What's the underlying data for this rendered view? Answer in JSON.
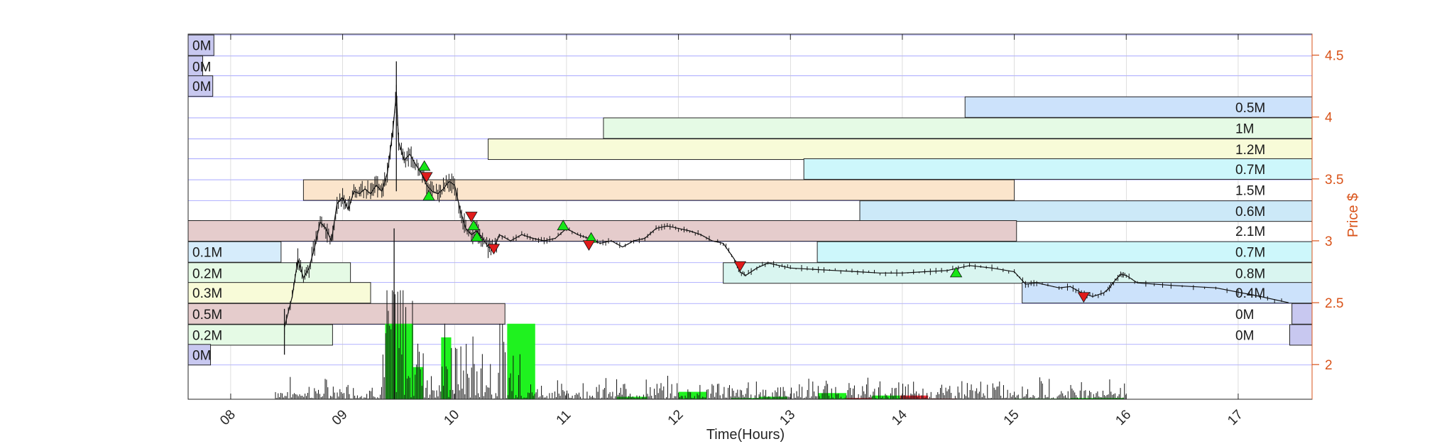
{
  "chart_data": {
    "type": "bar",
    "title": "",
    "xlabel": "Time(Hours)",
    "ylabel": "Price $",
    "x_ticks": [
      "08",
      "09",
      "10",
      "11",
      "12",
      "13",
      "14",
      "15",
      "16",
      "17"
    ],
    "x_range": [
      7.62,
      17.66
    ],
    "y_ticks": [
      "2",
      "2.5",
      "3",
      "3.5",
      "4",
      "4.5"
    ],
    "y_range": [
      1.72,
      4.67
    ],
    "grid": true,
    "colors": {
      "axis_right": "#d95319",
      "grid": "#7070ff",
      "volume_up": "#1ff21f",
      "volume_down": "#f2303a",
      "buy_marker": "#17e617",
      "sell_marker": "#e01b1b"
    },
    "volume_profile": {
      "price_bins": [
        4.58,
        4.41,
        4.25,
        4.08,
        3.91,
        3.74,
        3.58,
        3.41,
        3.24,
        3.08,
        2.91,
        2.74,
        2.58,
        2.41,
        2.24,
        2.08
      ],
      "bins": [
        {
          "side": "left",
          "label": "0M",
          "price": 4.58,
          "reach": 7.85,
          "color": "#c8c8f0"
        },
        {
          "side": "left",
          "label": "0M",
          "price": 4.41,
          "reach": 7.75,
          "color": "#c8c8f0"
        },
        {
          "side": "left",
          "label": "0M",
          "price": 4.25,
          "reach": 7.84,
          "color": "#c8c8f0"
        },
        {
          "side": "right",
          "label": "0.5M",
          "price": 4.08,
          "reach": 14.56,
          "color": "#cce2fb"
        },
        {
          "side": "right",
          "label": "1M",
          "price": 3.91,
          "reach": 11.33,
          "color": "#e5fae5"
        },
        {
          "side": "right",
          "label": "1.2M",
          "price": 3.74,
          "reach": 10.3,
          "color": "#f8fbd8"
        },
        {
          "side": "right",
          "label": "0.7M",
          "price": 3.58,
          "reach": 13.12,
          "color": "#cdf7fb"
        },
        {
          "side": "left",
          "label": "1.5M",
          "price": 3.41,
          "reach": 8.65,
          "color": "#fbe5cc",
          "wide_to": 15.0
        },
        {
          "side": "right",
          "label": "0.6M",
          "price": 3.24,
          "reach": 13.62,
          "color": "#cce9f8"
        },
        {
          "side": "left",
          "label": "0M",
          "price": 3.08,
          "reach": 7.73,
          "color": "#c8c8f0"
        },
        {
          "side": "left_wide",
          "label": "2.1M",
          "price": 3.08,
          "reach": 15.02,
          "color": "#e5cccc"
        },
        {
          "side": "left",
          "label": "0.1M",
          "price": 2.91,
          "reach": 8.45,
          "color": "#d6ecfb"
        },
        {
          "side": "right",
          "label": "0.7M",
          "price": 2.91,
          "reach": 13.24,
          "color": "#cdf7fb"
        },
        {
          "side": "left",
          "label": "0.2M",
          "price": 2.74,
          "reach": 9.07,
          "color": "#e5fae5"
        },
        {
          "side": "right",
          "label": "0.8M",
          "price": 2.74,
          "reach": 12.4,
          "color": "#d9f5f0"
        },
        {
          "side": "left",
          "label": "0.3M",
          "price": 2.58,
          "reach": 9.25,
          "color": "#f8fbd8"
        },
        {
          "side": "right",
          "label": "0.4M",
          "price": 2.58,
          "reach": 15.07,
          "color": "#cce2fb"
        },
        {
          "side": "left",
          "label": "0.5M",
          "price": 2.41,
          "reach": 10.45,
          "color": "#e5cccc"
        },
        {
          "side": "right",
          "label": "0M",
          "price": 2.41,
          "reach": 17.48,
          "color": "#c8c8f0"
        },
        {
          "side": "left",
          "label": "0.2M",
          "price": 2.24,
          "reach": 8.91,
          "color": "#e5fae5"
        },
        {
          "side": "right",
          "label": "0M",
          "price": 2.24,
          "reach": 17.46,
          "color": "#c8c8f0"
        },
        {
          "side": "left",
          "label": "0M",
          "price": 2.08,
          "reach": 7.82,
          "color": "#c8c8f0"
        }
      ]
    },
    "volume_bars": [
      {
        "x0": 9.38,
        "x1": 9.63,
        "h": 2.33,
        "dir": "up"
      },
      {
        "x0": 9.6,
        "x1": 9.72,
        "h": 1.98,
        "dir": "up"
      },
      {
        "x0": 9.88,
        "x1": 9.97,
        "h": 2.22,
        "dir": "up"
      },
      {
        "x0": 10.47,
        "x1": 10.72,
        "h": 2.33,
        "dir": "up"
      },
      {
        "x0": 11.45,
        "x1": 11.72,
        "h": 1.74,
        "dir": "up"
      },
      {
        "x0": 12.0,
        "x1": 12.25,
        "h": 1.78,
        "dir": "up"
      },
      {
        "x0": 12.47,
        "x1": 12.72,
        "h": 1.73,
        "dir": "up"
      },
      {
        "x0": 12.72,
        "x1": 12.97,
        "h": 1.74,
        "dir": "up"
      },
      {
        "x0": 13.25,
        "x1": 13.5,
        "h": 1.77,
        "dir": "up"
      },
      {
        "x0": 13.5,
        "x1": 13.73,
        "h": 1.73,
        "dir": "down"
      },
      {
        "x0": 13.73,
        "x1": 13.98,
        "h": 1.75,
        "dir": "up"
      },
      {
        "x0": 13.98,
        "x1": 14.23,
        "h": 1.75,
        "dir": "down"
      },
      {
        "x0": 14.23,
        "x1": 14.48,
        "h": 1.725,
        "dir": "down"
      },
      {
        "x0": 15.0,
        "x1": 15.25,
        "h": 1.725,
        "dir": "up"
      },
      {
        "x0": 15.25,
        "x1": 15.5,
        "h": 1.725,
        "dir": "up"
      },
      {
        "x0": 15.5,
        "x1": 15.73,
        "h": 1.73,
        "dir": "up"
      },
      {
        "x0": 15.73,
        "x1": 15.98,
        "h": 1.73,
        "dir": "up"
      }
    ],
    "price_series": {
      "x": [
        8.48,
        8.55,
        8.6,
        8.65,
        8.7,
        8.75,
        8.8,
        8.85,
        8.9,
        8.95,
        9.0,
        9.05,
        9.1,
        9.15,
        9.2,
        9.25,
        9.3,
        9.35,
        9.4,
        9.45,
        9.48,
        9.5,
        9.55,
        9.6,
        9.65,
        9.7,
        9.75,
        9.8,
        9.85,
        9.9,
        9.95,
        10.0,
        10.05,
        10.1,
        10.15,
        10.2,
        10.25,
        10.3,
        10.35,
        10.4,
        10.5,
        10.6,
        10.7,
        10.8,
        10.9,
        11.0,
        11.1,
        11.2,
        11.3,
        11.4,
        11.5,
        11.6,
        11.7,
        11.8,
        11.9,
        12.0,
        12.1,
        12.2,
        12.3,
        12.4,
        12.5,
        12.55,
        12.6,
        12.7,
        12.8,
        12.9,
        13.0,
        13.2,
        13.4,
        13.6,
        13.8,
        14.0,
        14.2,
        14.4,
        14.6,
        14.8,
        15.0,
        15.1,
        15.2,
        15.4,
        15.5,
        15.6,
        15.7,
        15.8,
        15.85,
        15.9,
        15.95,
        16.0,
        16.1,
        16.4,
        16.8,
        17.2,
        17.45
      ],
      "y": [
        2.3,
        2.55,
        2.85,
        2.7,
        2.78,
        2.95,
        3.15,
        3.1,
        3.0,
        3.3,
        3.35,
        3.25,
        3.4,
        3.38,
        3.42,
        3.38,
        3.45,
        3.4,
        3.55,
        3.9,
        4.2,
        3.8,
        3.65,
        3.7,
        3.62,
        3.55,
        3.45,
        3.4,
        3.38,
        3.42,
        3.48,
        3.45,
        3.25,
        3.1,
        3.05,
        3.08,
        3.02,
        2.95,
        2.93,
        3.05,
        3.0,
        3.05,
        3.02,
        3.0,
        3.02,
        3.1,
        3.05,
        3.02,
        2.98,
        3.0,
        2.95,
        3.0,
        3.02,
        3.1,
        3.12,
        3.1,
        3.08,
        3.05,
        3.0,
        2.98,
        2.85,
        2.75,
        2.72,
        2.78,
        2.82,
        2.8,
        2.78,
        2.77,
        2.76,
        2.75,
        2.74,
        2.74,
        2.75,
        2.76,
        2.8,
        2.78,
        2.75,
        2.65,
        2.66,
        2.62,
        2.63,
        2.58,
        2.55,
        2.58,
        2.62,
        2.68,
        2.73,
        2.72,
        2.66,
        2.64,
        2.62,
        2.55,
        2.5
      ]
    },
    "markers": [
      {
        "x": 9.73,
        "price": 3.6,
        "type": "buy"
      },
      {
        "x": 9.75,
        "price": 3.52,
        "type": "sell"
      },
      {
        "x": 9.77,
        "price": 3.36,
        "type": "buy"
      },
      {
        "x": 10.15,
        "price": 3.2,
        "type": "sell"
      },
      {
        "x": 10.17,
        "price": 3.12,
        "type": "buy"
      },
      {
        "x": 10.2,
        "price": 3.03,
        "type": "buy"
      },
      {
        "x": 10.35,
        "price": 2.94,
        "type": "sell"
      },
      {
        "x": 10.97,
        "price": 3.12,
        "type": "buy"
      },
      {
        "x": 11.22,
        "price": 3.02,
        "type": "buy"
      },
      {
        "x": 11.2,
        "price": 2.97,
        "type": "sell"
      },
      {
        "x": 12.55,
        "price": 2.8,
        "type": "sell"
      },
      {
        "x": 14.48,
        "price": 2.74,
        "type": "buy"
      },
      {
        "x": 15.62,
        "price": 2.55,
        "type": "sell"
      }
    ]
  }
}
